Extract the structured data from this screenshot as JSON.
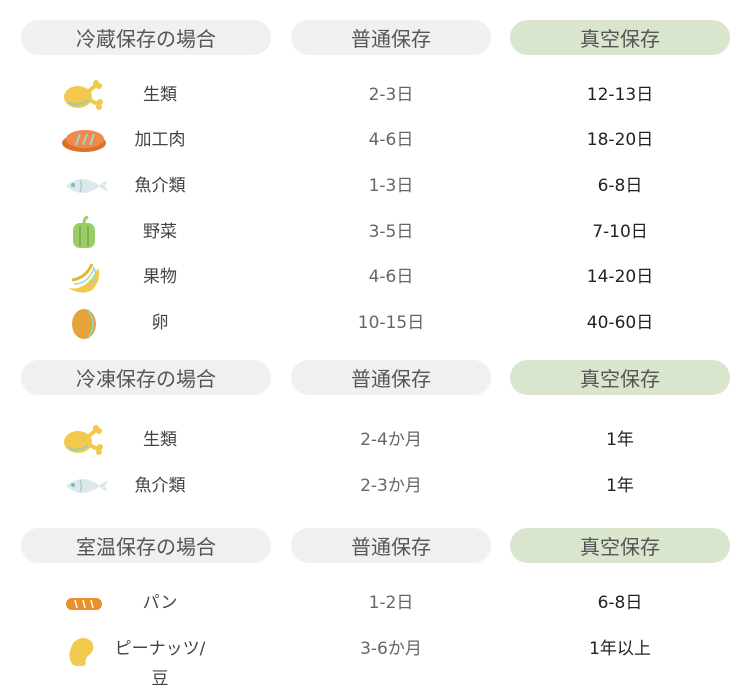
{
  "colors": {
    "header_gray": "#f0f0f0",
    "header_green": "#d9e6cd"
  },
  "sections": [
    {
      "title": "冷蔵保存の場合",
      "col_normal": "普通保存",
      "col_vacuum": "真空保存",
      "rows": [
        {
          "icon": "chicken-icon",
          "label": "生類",
          "normal": "2-3日",
          "vacuum": "12-13日"
        },
        {
          "icon": "steak-icon",
          "label": "加工肉",
          "normal": "4-6日",
          "vacuum": "18-20日"
        },
        {
          "icon": "fish-icon",
          "label": "魚介類",
          "normal": "1-3日",
          "vacuum": "6-8日"
        },
        {
          "icon": "pepper-icon",
          "label": "野菜",
          "normal": "3-5日",
          "vacuum": "7-10日"
        },
        {
          "icon": "banana-icon",
          "label": "果物",
          "normal": "4-6日",
          "vacuum": "14-20日"
        },
        {
          "icon": "egg-icon",
          "label": "卵",
          "normal": "10-15日",
          "vacuum": "40-60日"
        }
      ]
    },
    {
      "title": "冷凍保存の場合",
      "col_normal": "普通保存",
      "col_vacuum": "真空保存",
      "rows": [
        {
          "icon": "chicken-icon",
          "label": "生類",
          "normal": "2-4か月",
          "vacuum": "1年"
        },
        {
          "icon": "fish-icon",
          "label": "魚介類",
          "normal": "2-3か月",
          "vacuum": "1年"
        }
      ]
    },
    {
      "title": "室温保存の場合",
      "col_normal": "普通保存",
      "col_vacuum": "真空保存",
      "rows": [
        {
          "icon": "bread-icon",
          "label": "パン",
          "normal": "1-2日",
          "vacuum": "6-8日"
        },
        {
          "icon": "peanut-icon",
          "label": "ピーナッツ/豆",
          "normal": "3-6か月",
          "vacuum": "1年以上"
        }
      ]
    }
  ]
}
